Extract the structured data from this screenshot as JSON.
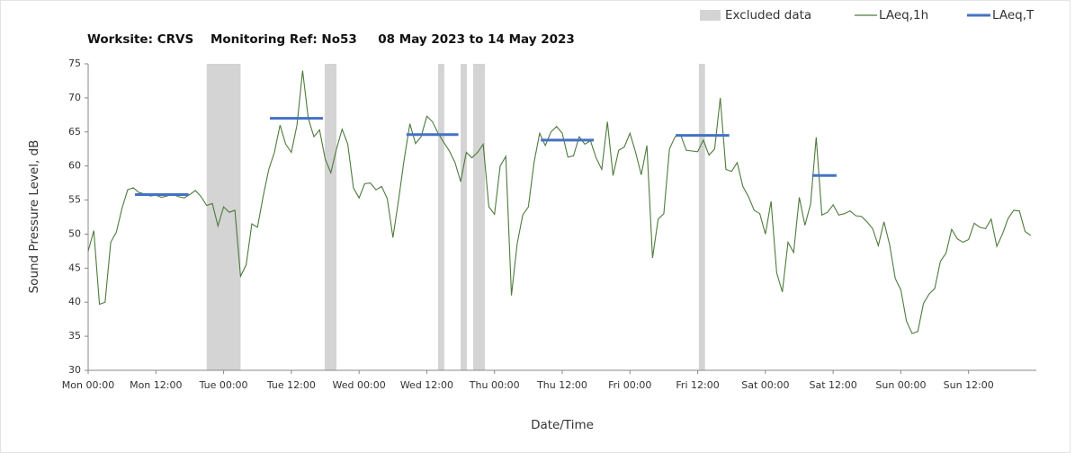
{
  "chart_data": {
    "type": "line",
    "title": "Worksite: CRVS    Monitoring Ref: No53     08 May 2023 to 14 May 2023",
    "x_label": "Date/Time",
    "y_label": "Sound Pressure Level, dB",
    "legend": "top-right",
    "grid": false,
    "xlim": [
      0,
      168
    ],
    "xticks": [
      {
        "value": 0,
        "label": "Mon 00:00"
      },
      {
        "value": 12,
        "label": "Mon 12:00"
      },
      {
        "value": 24,
        "label": "Tue 00:00"
      },
      {
        "value": 36,
        "label": "Tue 12:00"
      },
      {
        "value": 48,
        "label": "Wed 00:00"
      },
      {
        "value": 60,
        "label": "Wed 12:00"
      },
      {
        "value": 72,
        "label": "Thu 00:00"
      },
      {
        "value": 84,
        "label": "Thu 12:00"
      },
      {
        "value": 96,
        "label": "Fri 00:00"
      },
      {
        "value": 108,
        "label": "Fri 12:00"
      },
      {
        "value": 120,
        "label": "Sat 00:00"
      },
      {
        "value": 132,
        "label": "Sat 12:00"
      },
      {
        "value": 144,
        "label": "Sun 00:00"
      },
      {
        "value": 156,
        "label": "Sun 12:00"
      }
    ],
    "ylim": [
      30,
      75
    ],
    "yticks": [
      30,
      35,
      40,
      45,
      50,
      55,
      60,
      65,
      70,
      75
    ],
    "x": [
      0,
      1,
      2,
      3,
      4,
      5,
      6,
      7,
      8,
      9,
      10,
      11,
      12,
      13,
      14,
      15,
      16,
      17,
      18,
      19,
      20,
      21,
      22,
      23,
      24,
      25,
      26,
      27,
      28,
      29,
      30,
      31,
      32,
      33,
      34,
      35,
      36,
      37,
      38,
      39,
      40,
      41,
      42,
      43,
      44,
      45,
      46,
      47,
      48,
      49,
      50,
      51,
      52,
      53,
      54,
      55,
      56,
      57,
      58,
      59,
      60,
      61,
      62,
      63,
      64,
      65,
      66,
      67,
      68,
      69,
      70,
      71,
      72,
      73,
      74,
      75,
      76,
      77,
      78,
      79,
      80,
      81,
      82,
      83,
      84,
      85,
      86,
      87,
      88,
      89,
      90,
      91,
      92,
      93,
      94,
      95,
      96,
      97,
      98,
      99,
      100,
      101,
      102,
      103,
      104,
      105,
      106,
      107,
      108,
      109,
      110,
      111,
      112,
      113,
      114,
      115,
      116,
      117,
      118,
      119,
      120,
      121,
      122,
      123,
      124,
      125,
      126,
      127,
      128,
      129,
      130,
      131,
      132,
      133,
      134,
      135,
      136,
      137,
      138,
      139,
      140,
      141,
      142,
      143,
      144,
      145,
      146,
      147,
      148,
      149,
      150,
      151,
      152,
      153,
      154,
      155,
      156,
      157,
      158,
      159,
      160,
      161,
      162,
      163,
      164,
      165,
      166,
      167
    ],
    "series": [
      {
        "name": "Excluded data",
        "color": "#d4d4d4",
        "spans": [
          [
            21,
            27
          ],
          [
            41.9,
            44
          ],
          [
            62,
            63.1
          ],
          [
            66,
            67.1
          ],
          [
            68.2,
            70.3
          ],
          [
            108.2,
            109.3
          ]
        ]
      },
      {
        "name": "LAeq,1h",
        "color": "#4e7a3c",
        "values": [
          47.5,
          50.5,
          39.7,
          40,
          48.8,
          50.3,
          53.8,
          56.5,
          56.8,
          56.1,
          55.9,
          55.6,
          55.7,
          55.4,
          55.6,
          55.8,
          55.5,
          55.3,
          55.8,
          56.4,
          55.5,
          54.2,
          54.5,
          51.2,
          54,
          53.2,
          53.5,
          43.8,
          45.5,
          51.5,
          51,
          55.5,
          59.5,
          62,
          66,
          63.2,
          62,
          66,
          74,
          67,
          64.3,
          65.3,
          61,
          59,
          62.5,
          65.4,
          63.2,
          56.8,
          55.3,
          57.4,
          57.5,
          56.5,
          57,
          55.2,
          49.5,
          55,
          61,
          66.2,
          63.3,
          64.3,
          67.3,
          66.5,
          64.8,
          63.5,
          62.2,
          60.5,
          57.7,
          62,
          61.2,
          62,
          63.2,
          54,
          52.9,
          60,
          61.4,
          41,
          48.5,
          52.8,
          54,
          60.5,
          64.8,
          63,
          65,
          65.8,
          64.8,
          61.3,
          61.5,
          64.3,
          63.2,
          63.7,
          61.2,
          59.5,
          66.5,
          58.6,
          62.3,
          62.8,
          64.8,
          62,
          58.7,
          63,
          46.5,
          52.2,
          53,
          62.5,
          64.3,
          64.5,
          62.3,
          62.2,
          62.1,
          63.8,
          61.6,
          62.5,
          70,
          59.5,
          59.2,
          60.5,
          57,
          55.5,
          53.5,
          53,
          50,
          54.8,
          44.3,
          41.5,
          48.8,
          47.3,
          55.4,
          51.3,
          54.4,
          64.2,
          52.8,
          53.2,
          54.3,
          52.8,
          53,
          53.4,
          52.7,
          52.6,
          51.8,
          50.8,
          48.3,
          51.8,
          48.5,
          43.5,
          41.8,
          37.2,
          35.4,
          35.7,
          39.8,
          41.2,
          42,
          46,
          47.2,
          50.7,
          49.3,
          48.8,
          49.2,
          51.6,
          51,
          50.8,
          52.2,
          48.2,
          50,
          52.3,
          53.5,
          53.4,
          50.4,
          49.8
        ]
      },
      {
        "name": "LAeq,T",
        "color": "#4472c4",
        "segments": [
          {
            "x": [
              8.3,
              17.8
            ],
            "value": 55.8
          },
          {
            "x": [
              32.2,
              41.6
            ],
            "value": 67
          },
          {
            "x": [
              56.4,
              65.6
            ],
            "value": 64.6
          },
          {
            "x": [
              80.2,
              89.6
            ],
            "value": 63.8
          },
          {
            "x": [
              104.1,
              113.6
            ],
            "value": 64.5
          },
          {
            "x": [
              128.3,
              132.6
            ],
            "value": 58.6
          }
        ]
      }
    ]
  }
}
